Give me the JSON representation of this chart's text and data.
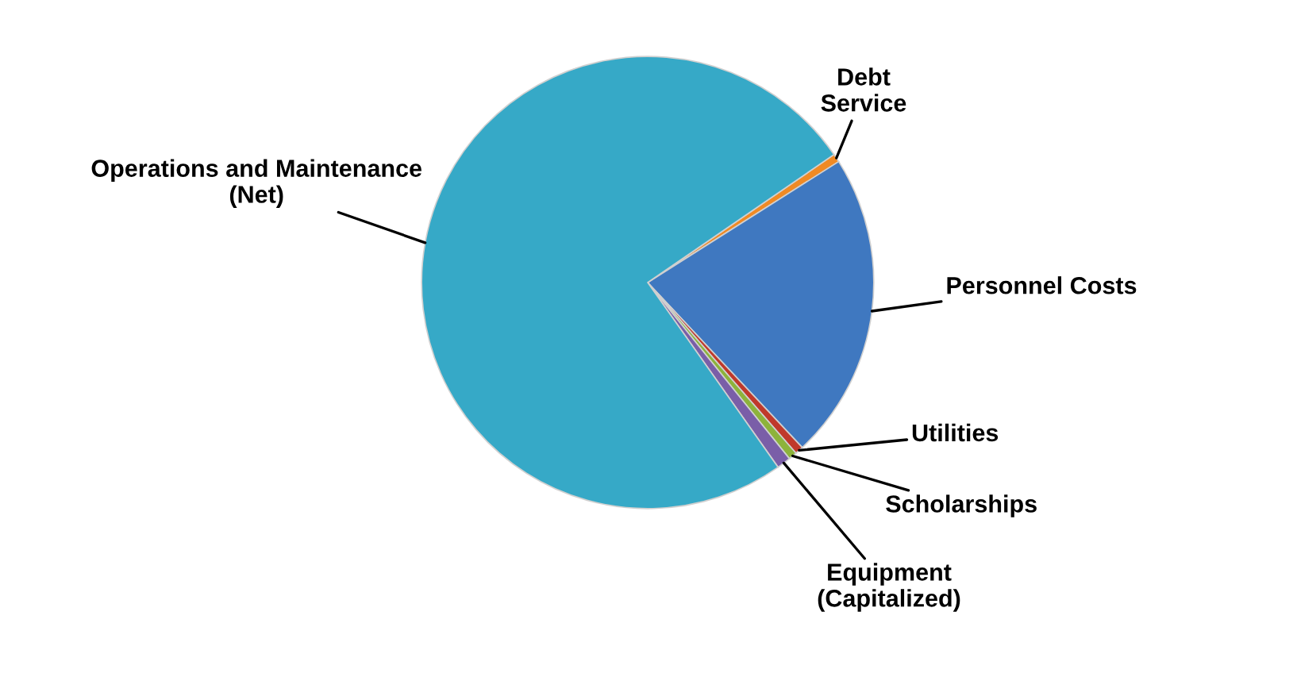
{
  "chart_data": {
    "type": "pie",
    "categories": [
      "Debt Service",
      "Personnel Costs",
      "Utilities",
      "Scholarships",
      "Equipment (Capitalized)",
      "Operations and Maintenance (Net)"
    ],
    "values": [
      0.6,
      22,
      0.6,
      0.6,
      1.0,
      75.2
    ],
    "colors": [
      "#f08a24",
      "#3f78c0",
      "#c0392b",
      "#8db33b",
      "#7a5ea8",
      "#36a9c7"
    ]
  }
}
